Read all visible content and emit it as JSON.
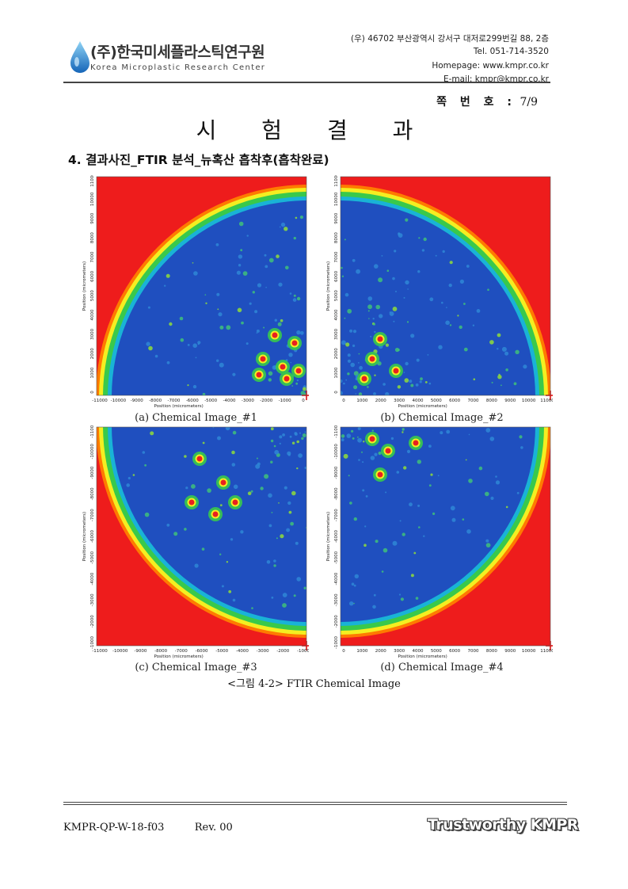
{
  "header": {
    "org_name_kr": "(주)한국미세플라스틱연구원",
    "org_name_en": "Korea Microplastic Research Center",
    "address": "(우) 46702 부산광역시 강서구 대저로299번길 88, 2층",
    "tel": "Tel. 051-714-3520",
    "homepage": "Homepage: www.kmpr.co.kr",
    "email": "E-mail: kmpr@kmpr.co.kr",
    "page_label": "쪽 번 호 :",
    "page_value": "7/9"
  },
  "title": "시 험 결 과",
  "section_heading": "4. 결과사진_FTIR 분석_뉴혹산 흡착후(흡착완료)",
  "figures": [
    {
      "caption": "(a) Chemical Image_#1",
      "ylabel": "Position (micrometers)",
      "xlabel": "Position (micrometers)",
      "xticks": [
        "-11000",
        "-10000",
        "-9000",
        "-8000",
        "-7000",
        "-6000",
        "-5000",
        "-4000",
        "-3000",
        "-2000",
        "-1000",
        "0"
      ],
      "yticks": [
        "0",
        "1000",
        "2000",
        "3000",
        "4000",
        "5000",
        "6000",
        "7000",
        "8000",
        "9000",
        "10000",
        "11000"
      ]
    },
    {
      "caption": "(b) Chemical Image_#2",
      "ylabel": "Position (micrometers)",
      "xlabel": "Position (micrometers)",
      "xticks": [
        "0",
        "1000",
        "2000",
        "3000",
        "4000",
        "5000",
        "6000",
        "7000",
        "8000",
        "9000",
        "10000",
        "11000"
      ],
      "yticks": [
        "0",
        "1000",
        "2000",
        "3000",
        "4000",
        "5000",
        "6000",
        "7000",
        "8000",
        "9000",
        "10000",
        "11000"
      ]
    },
    {
      "caption": "(c) Chemical Image_#3",
      "ylabel": "Position (micrometers)",
      "xlabel": "Position (micrometers)",
      "xticks": [
        "-11000",
        "-10000",
        "-9000",
        "-8000",
        "-7000",
        "-6000",
        "-5000",
        "-4000",
        "-3000",
        "-2000",
        "-1000"
      ],
      "yticks": [
        "-1000",
        "-2000",
        "-3000",
        "-4000",
        "-5000",
        "-6000",
        "-7000",
        "-8000",
        "-9000",
        "-10000",
        "-11000"
      ]
    },
    {
      "caption": "(d) Chemical Image_#4",
      "ylabel": "Position (micrometers)",
      "xlabel": "Position (micrometers)",
      "xticks": [
        "0",
        "1000",
        "2000",
        "3000",
        "4000",
        "5000",
        "6000",
        "7000",
        "8000",
        "9000",
        "10000",
        "11000"
      ],
      "yticks": [
        "-1000",
        "-2000",
        "-3000",
        "-4000",
        "-5000",
        "-6000",
        "-7000",
        "-8000",
        "-9000",
        "-10000",
        "-11000"
      ]
    }
  ],
  "figure_caption": "<그림 4-2> FTIR Chemical Image",
  "footer": {
    "doc_code": "KMPR-QP-W-18-f03",
    "revision": "Rev. 00",
    "brand": "Trustworthy KMPR"
  },
  "colors": {
    "background_red": "#ee1c1c",
    "field_blue": "#1f4fbf",
    "ring_green": "#39c94b",
    "ring_yellow": "#f4ee21"
  }
}
